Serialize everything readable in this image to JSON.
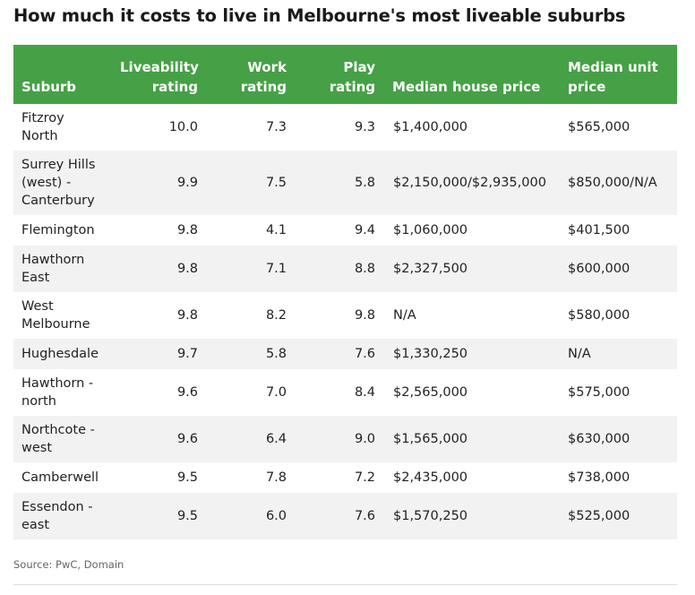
{
  "title": "How much it costs to live in Melbourne's most liveable suburbs",
  "source": "Source: PwC, Domain",
  "colors": {
    "header_bg": "#46a046",
    "stripe": "#f2f2f2"
  },
  "chart_data": {
    "type": "table",
    "columns": [
      "Suburb",
      "Liveability rating",
      "Work rating",
      "Play rating",
      "Median house price",
      "Median unit price"
    ],
    "rows": [
      {
        "suburb": "Fitzroy North",
        "liveability": "10.0",
        "work": "7.3",
        "play": "9.3",
        "house": "$1,400,000",
        "unit": "$565,000"
      },
      {
        "suburb": "Surrey Hills (west) - Canterbury",
        "liveability": "9.9",
        "work": "7.5",
        "play": "5.8",
        "house": "$2,150,000/$2,935,000",
        "unit": "$850,000/N/A"
      },
      {
        "suburb": "Flemington",
        "liveability": "9.8",
        "work": "4.1",
        "play": "9.4",
        "house": "$1,060,000",
        "unit": "$401,500"
      },
      {
        "suburb": "Hawthorn East",
        "liveability": "9.8",
        "work": "7.1",
        "play": "8.8",
        "house": "$2,327,500",
        "unit": "$600,000"
      },
      {
        "suburb": "West Melbourne",
        "liveability": "9.8",
        "work": "8.2",
        "play": "9.8",
        "house": "N/A",
        "unit": "$580,000"
      },
      {
        "suburb": "Hughesdale",
        "liveability": "9.7",
        "work": "5.8",
        "play": "7.6",
        "house": "$1,330,250",
        "unit": "N/A"
      },
      {
        "suburb": "Hawthorn - north",
        "liveability": "9.6",
        "work": "7.0",
        "play": "8.4",
        "house": "$2,565,000",
        "unit": "$575,000"
      },
      {
        "suburb": "Northcote - west",
        "liveability": "9.6",
        "work": "6.4",
        "play": "9.0",
        "house": "$1,565,000",
        "unit": "$630,000"
      },
      {
        "suburb": "Camberwell",
        "liveability": "9.5",
        "work": "7.8",
        "play": "7.2",
        "house": "$2,435,000",
        "unit": "$738,000"
      },
      {
        "suburb": "Essendon - east",
        "liveability": "9.5",
        "work": "6.0",
        "play": "7.6",
        "house": "$1,570,250",
        "unit": "$525,000"
      }
    ]
  }
}
